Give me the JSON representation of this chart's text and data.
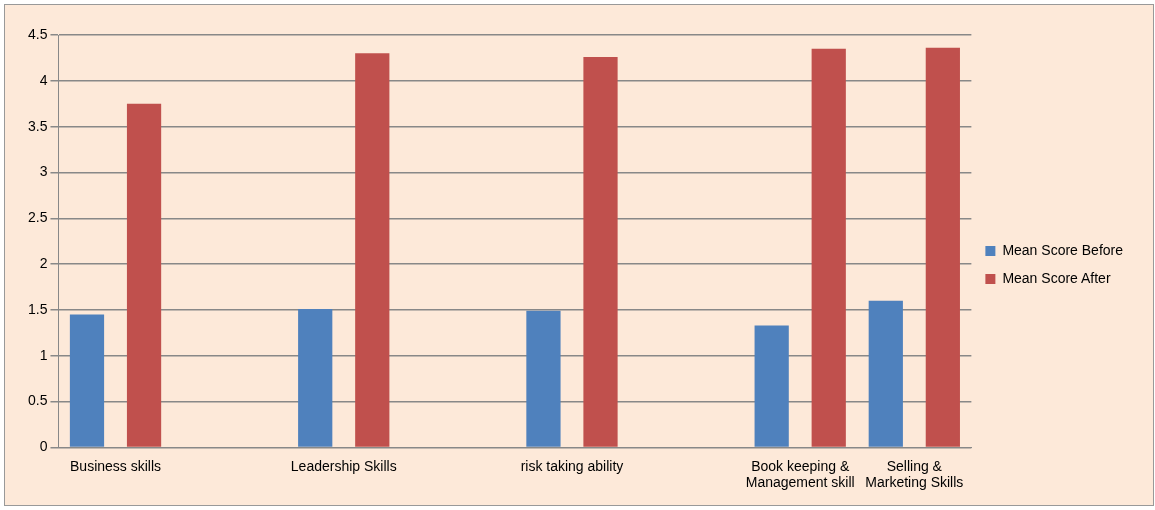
{
  "chart_data": {
    "type": "bar",
    "categories": [
      "Business skills",
      null,
      "Leadership Skills",
      null,
      "risk taking ability",
      null,
      "Book keeping & Management skill",
      "Selling & Marketing Skills"
    ],
    "series": [
      {
        "name": "Mean Score Before",
        "color": "#4f81bd",
        "values": [
          1.45,
          null,
          1.51,
          null,
          1.49,
          null,
          1.33,
          1.6
        ]
      },
      {
        "name": "Mean Score After",
        "color": "#c0504d",
        "values": [
          3.75,
          null,
          4.3,
          null,
          4.26,
          null,
          4.35,
          4.36
        ]
      }
    ],
    "ylim": [
      0,
      4.5
    ],
    "yticks": [
      0,
      0.5,
      1,
      1.5,
      2,
      2.5,
      3,
      3.5,
      4,
      4.5
    ],
    "grid": "y",
    "legend": "right"
  }
}
